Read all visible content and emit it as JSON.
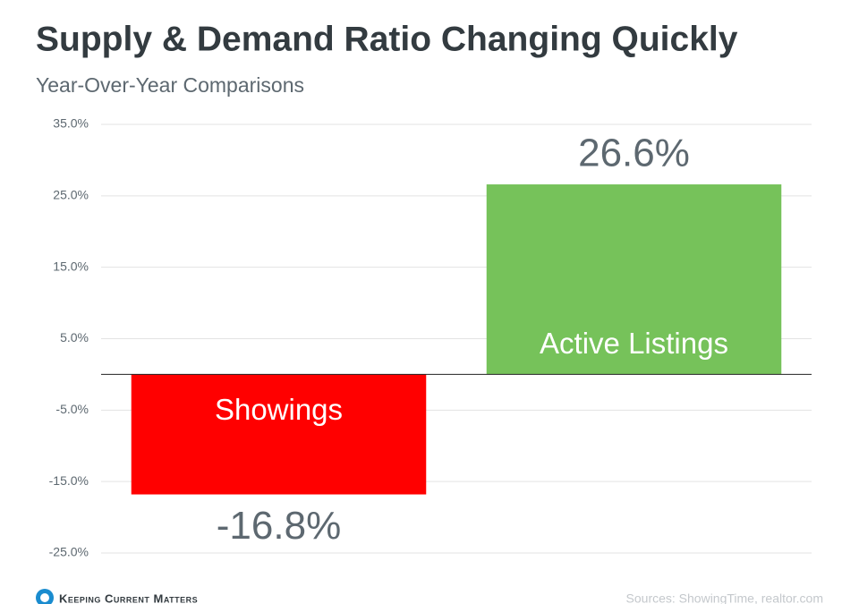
{
  "chart_data": {
    "type": "bar",
    "title": "Supply & Demand Ratio Changing Quickly",
    "subtitle": "Year-Over-Year Comparisons",
    "categories": [
      "Showings",
      "Active Listings"
    ],
    "values": [
      -16.8,
      26.6
    ],
    "value_labels": [
      "-16.8%",
      "26.6%"
    ],
    "colors": [
      "#ff0000",
      "#76c25a"
    ],
    "ylim": [
      -25,
      35
    ],
    "yticks": [
      {
        "value": -25,
        "label": "-25.0%"
      },
      {
        "value": -15,
        "label": "-15.0%"
      },
      {
        "value": -5,
        "label": "-5.0%"
      },
      {
        "value": 5,
        "label": "5.0%"
      },
      {
        "value": 15,
        "label": "15.0%"
      },
      {
        "value": 25,
        "label": "25.0%"
      },
      {
        "value": 35,
        "label": "35.0%"
      }
    ],
    "grid": true,
    "brand": "Keeping Current Matters",
    "source": "Sources: ShowingTime, realtor.com"
  }
}
